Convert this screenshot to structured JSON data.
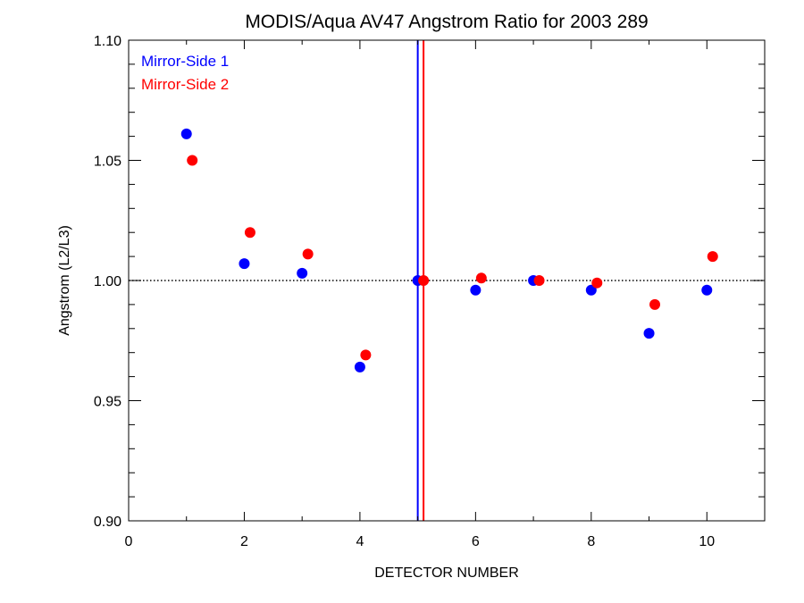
{
  "chart_data": {
    "type": "scatter",
    "title": "MODIS/Aqua AV47 Angstrom Ratio for 2003 289",
    "xlabel": "DETECTOR NUMBER",
    "ylabel": "Angstrom (L2/L3)",
    "xlim": [
      0,
      11
    ],
    "ylim": [
      0.9,
      1.1
    ],
    "x_ticks": [
      0,
      2,
      4,
      6,
      8,
      10
    ],
    "x_tick_labels": [
      "0",
      "2",
      "4",
      "6",
      "8",
      "10"
    ],
    "y_ticks": [
      0.9,
      0.95,
      1.0,
      1.05,
      1.1
    ],
    "y_tick_labels": [
      "0.90",
      "0.95",
      "1.00",
      "1.05",
      "1.10"
    ],
    "reference_line_y": 1.0,
    "legend_position": "top-left",
    "series": [
      {
        "name": "Mirror-Side 1",
        "color": "#0000ff",
        "x": [
          1,
          2,
          3,
          4,
          5,
          6,
          7,
          8,
          9,
          10
        ],
        "y": [
          1.061,
          1.007,
          1.003,
          0.964,
          1.0,
          0.996,
          1.0,
          0.996,
          0.978,
          0.996
        ],
        "vertical_line_x": 5.0
      },
      {
        "name": "Mirror-Side 2",
        "color": "#ff0000",
        "x": [
          1.1,
          2.1,
          3.1,
          4.1,
          5.1,
          6.1,
          7.1,
          8.1,
          9.1,
          10.1
        ],
        "y": [
          1.05,
          1.02,
          1.011,
          0.969,
          1.0,
          1.001,
          1.0,
          0.999,
          0.99,
          1.01
        ],
        "vertical_line_x": 5.1
      }
    ]
  }
}
